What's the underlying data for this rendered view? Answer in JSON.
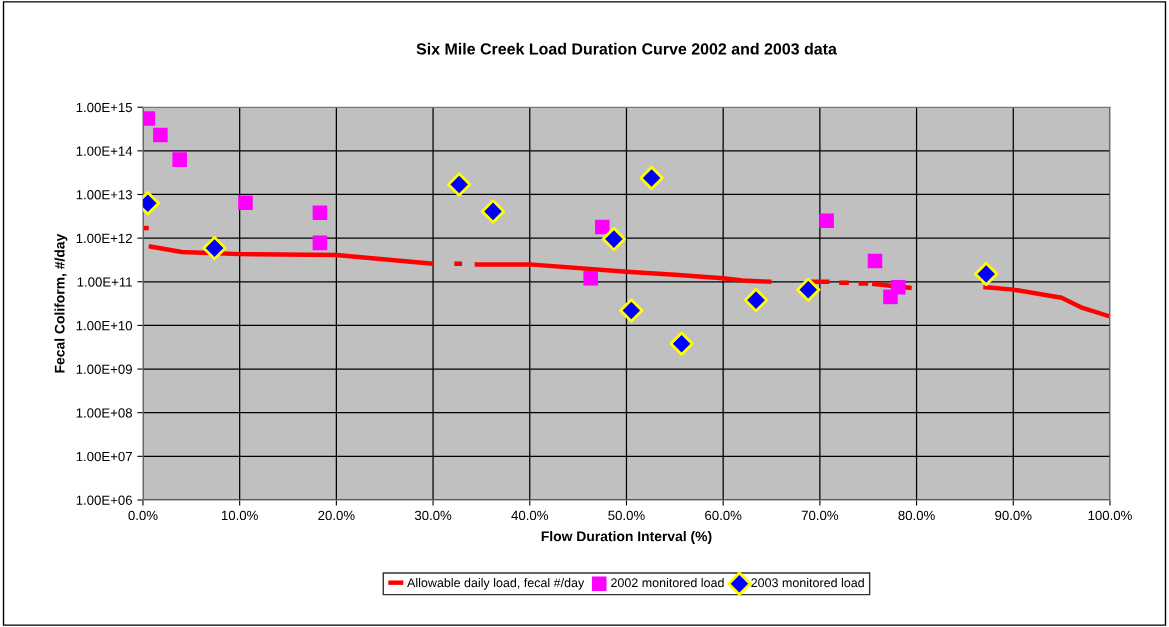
{
  "chart_data": {
    "type": "scatter",
    "title": "Six Mile Creek Load Duration Curve 2002 and 2003 data",
    "xlabel": "Flow Duration Interval (%)",
    "ylabel": "Fecal Coliform, #/day",
    "log": "y",
    "grid": true,
    "legend": "bottom",
    "xlim": [
      0,
      100
    ],
    "xticks": [
      {
        "value": 0,
        "label": "0.0%"
      },
      {
        "value": 10,
        "label": "10.0%"
      },
      {
        "value": 20,
        "label": "20.0%"
      },
      {
        "value": 30,
        "label": "30.0%"
      },
      {
        "value": 40,
        "label": "40.0%"
      },
      {
        "value": 50,
        "label": "50.0%"
      },
      {
        "value": 60,
        "label": "60.0%"
      },
      {
        "value": 70,
        "label": "70.0%"
      },
      {
        "value": 80,
        "label": "80.0%"
      },
      {
        "value": 90,
        "label": "90.0%"
      },
      {
        "value": 100,
        "label": "100.0%"
      }
    ],
    "ylim": [
      1000000.0,
      1000000000000000.0
    ],
    "yticks": [
      {
        "value": 1000000.0,
        "label": "1.00E+06"
      },
      {
        "value": 10000000.0,
        "label": "1.00E+07"
      },
      {
        "value": 100000000.0,
        "label": "1.00E+08"
      },
      {
        "value": 1000000000.0,
        "label": "1.00E+09"
      },
      {
        "value": 10000000000.0,
        "label": "1.00E+10"
      },
      {
        "value": 100000000000.0,
        "label": "1.00E+11"
      },
      {
        "value": 1000000000000.0,
        "label": "1.00E+12"
      },
      {
        "value": 10000000000000.0,
        "label": "1.00E+13"
      },
      {
        "value": 100000000000000.0,
        "label": "1.00E+14"
      },
      {
        "value": 1000000000000000.0,
        "label": "1.00E+15"
      }
    ],
    "series": [
      {
        "name": "Allowable daily load, fecal #/day",
        "type": "line",
        "color": "#ff0000",
        "marker": "none",
        "line_style": "solid",
        "x": [
          0.6,
          4,
          10,
          20,
          30,
          31,
          32.2,
          33,
          33.6,
          34.3,
          40,
          50,
          55,
          60,
          62,
          65,
          67,
          69,
          71,
          71.5,
          72,
          73,
          73.5,
          74,
          75,
          75.2,
          75.4,
          79.5,
          83,
          86.9,
          90,
          95,
          97,
          100
        ],
        "values": [
          650000000000.0,
          480000000000.0,
          430000000000.0,
          410000000000.0,
          260000000000.0,
          null,
          260000000000.0,
          260000000000.0,
          null,
          250000000000.0,
          250000000000.0,
          170000000000.0,
          145000000000.0,
          120000000000.0,
          107000000000.0,
          100000000000.0,
          null,
          100000000000.0,
          100000000000.0,
          null,
          95000000000.0,
          95000000000.0,
          null,
          91000000000.0,
          91000000000.0,
          null,
          90000000000.0,
          72000000000.0,
          null,
          76000000000.0,
          66000000000.0,
          43000000000.0,
          26000000000.0,
          16000000000.0
        ]
      },
      {
        "type": "line",
        "color": "#ff0000",
        "marker": "none",
        "line_style": "solid",
        "x": [
          0,
          0.6
        ],
        "values": [
          1700000000000.0,
          1700000000000.0
        ]
      },
      {
        "name": "2002 monitored load",
        "color": "#ff00ff",
        "marker": "square",
        "x": [
          0.5,
          1.8,
          3.8,
          10.6,
          18.3,
          18.3,
          47.5,
          46.3,
          70.7,
          75.7,
          78.1,
          77.3
        ],
        "values": [
          550000000000000.0,
          230000000000000.0,
          63000000000000.0,
          6500000000000.0,
          3800000000000.0,
          780000000000.0,
          1800000000000.0,
          120000000000.0,
          2500000000000.0,
          300000000000.0,
          75000000000.0,
          45000000000.0
        ]
      },
      {
        "name": "2003 monitored load",
        "color": "#0000ff",
        "marker": "diamond",
        "x": [
          0.5,
          7.4,
          32.7,
          36.2,
          52.6,
          48.7,
          50.5,
          55.7,
          63.4,
          68.8,
          87.2
        ],
        "values": [
          6300000000000.0,
          590000000000.0,
          17000000000000.0,
          4100000000000.0,
          24000000000000.0,
          950000000000.0,
          22000000000.0,
          3800000000.0,
          38000000000.0,
          66000000000.0,
          150000000000.0
        ]
      }
    ]
  }
}
